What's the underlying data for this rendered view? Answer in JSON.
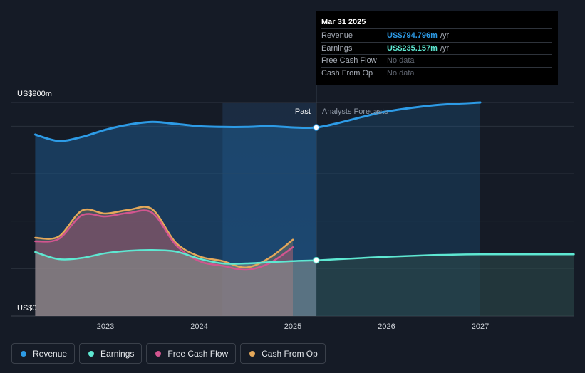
{
  "chart_data": {
    "type": "area",
    "ylabel_top": "US$900m",
    "ylabel_bottom": "US$0",
    "ylim": [
      0,
      900
    ],
    "xlim": [
      2022.25,
      2028.0
    ],
    "x_ticks": [
      2023,
      2024,
      2025,
      2026,
      2027
    ],
    "x_tick_labels": [
      "2023",
      "2024",
      "2025",
      "2026",
      "2027"
    ],
    "divider_x": 2025.25,
    "past_label": "Past",
    "forecast_label": "Analysts Forecasts",
    "grid": true,
    "legend_position": "bottom-left",
    "series": [
      {
        "key": "revenue",
        "name": "Revenue",
        "color": "#2d9be6",
        "x": [
          2022.25,
          2022.5,
          2022.75,
          2023.0,
          2023.25,
          2023.5,
          2023.75,
          2024.0,
          2024.25,
          2024.5,
          2024.75,
          2025.0,
          2025.25,
          2025.5,
          2025.75,
          2026.0,
          2026.5,
          2027.0
        ],
        "y": [
          765,
          738,
          755,
          785,
          807,
          818,
          810,
          800,
          797,
          797,
          800,
          795,
          795,
          815,
          840,
          862,
          888,
          900
        ]
      },
      {
        "key": "earnings",
        "name": "Earnings",
        "color": "#5ee8d2",
        "x": [
          2022.25,
          2022.5,
          2022.75,
          2023.0,
          2023.25,
          2023.5,
          2023.75,
          2024.0,
          2024.25,
          2024.5,
          2024.75,
          2025.0,
          2025.25,
          2025.5,
          2026.0,
          2026.5,
          2027.0,
          2028.0
        ],
        "y": [
          270,
          240,
          245,
          265,
          275,
          278,
          272,
          242,
          222,
          222,
          227,
          232,
          235,
          240,
          250,
          257,
          260,
          260
        ]
      },
      {
        "key": "fcf",
        "name": "Free Cash Flow",
        "color": "#d2558f",
        "x": [
          2022.25,
          2022.5,
          2022.75,
          2023.0,
          2023.25,
          2023.5,
          2023.75,
          2024.0,
          2024.25,
          2024.5,
          2024.75,
          2025.0
        ],
        "y": [
          315,
          325,
          425,
          420,
          435,
          435,
          300,
          232,
          212,
          195,
          223,
          290
        ]
      },
      {
        "key": "cfo",
        "name": "Cash From Op",
        "color": "#e5a85a",
        "x": [
          2022.25,
          2022.5,
          2022.75,
          2023.0,
          2023.25,
          2023.5,
          2023.75,
          2024.0,
          2024.25,
          2024.5,
          2024.75,
          2025.0
        ],
        "y": [
          330,
          335,
          445,
          432,
          448,
          450,
          310,
          252,
          232,
          205,
          245,
          322
        ]
      }
    ],
    "tooltip": {
      "date": "Mar 31 2025",
      "rows": [
        {
          "name": "Revenue",
          "value": "US$794.796m",
          "unit": "/yr",
          "color": "#2d9be6"
        },
        {
          "name": "Earnings",
          "value": "US$235.157m",
          "unit": "/yr",
          "color": "#5ee8d2"
        },
        {
          "name": "Free Cash Flow",
          "value": "No data",
          "unit": "",
          "color": ""
        },
        {
          "name": "Cash From Op",
          "value": "No data",
          "unit": "",
          "color": ""
        }
      ]
    }
  },
  "legend": [
    {
      "label": "Revenue",
      "color": "#2d9be6"
    },
    {
      "label": "Earnings",
      "color": "#5ee8d2"
    },
    {
      "label": "Free Cash Flow",
      "color": "#d2558f"
    },
    {
      "label": "Cash From Op",
      "color": "#e5a85a"
    }
  ]
}
